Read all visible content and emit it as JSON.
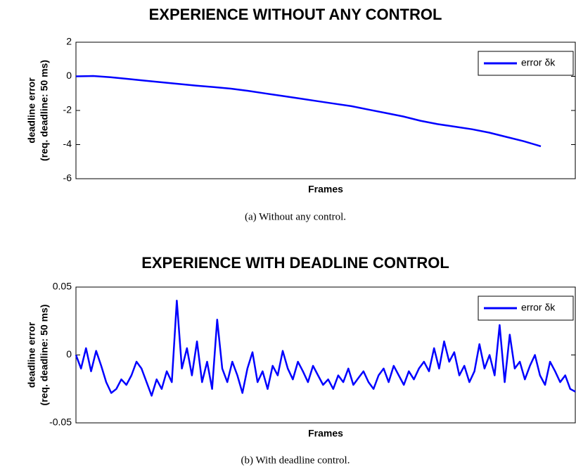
{
  "chart_data": [
    {
      "type": "line",
      "title": "EXPERIENCE WITHOUT ANY CONTROL",
      "xlabel": "Frames",
      "ylabel": [
        "deadline error",
        "(req. deadline: 50 ms)"
      ],
      "caption": "(a)  Without any control.",
      "ylim": [
        -6,
        2
      ],
      "yticks": [
        -6,
        -4,
        -2,
        0,
        2
      ],
      "grid": false,
      "legend": "upper right",
      "series": [
        {
          "name": "error δk",
          "color": "#0000ff",
          "values": [
            0,
            0.02,
            -0.05,
            -0.15,
            -0.25,
            -0.35,
            -0.45,
            -0.55,
            -0.63,
            -0.72,
            -0.85,
            -1.0,
            -1.15,
            -1.3,
            -1.45,
            -1.6,
            -1.75,
            -1.95,
            -2.15,
            -2.35,
            -2.6,
            -2.8,
            -2.95,
            -3.1,
            -3.3,
            -3.55,
            -3.8,
            -4.1,
            null,
            null
          ]
        }
      ]
    },
    {
      "type": "line",
      "title": "EXPERIENCE WITH DEADLINE CONTROL",
      "xlabel": "Frames",
      "ylabel": [
        "deadline error",
        "(req. deadline: 50 ms)"
      ],
      "caption": "(b)  With deadline control.",
      "ylim": [
        -0.05,
        0.05
      ],
      "yticks": [
        -0.05,
        0,
        0.05
      ],
      "grid": false,
      "legend": "upper right",
      "series": [
        {
          "name": "error δk",
          "color": "#0000ff",
          "values": [
            0.0,
            -0.01,
            0.005,
            -0.012,
            0.003,
            -0.008,
            -0.02,
            -0.028,
            -0.025,
            -0.018,
            -0.022,
            -0.015,
            -0.005,
            -0.01,
            -0.02,
            -0.03,
            -0.018,
            -0.025,
            -0.012,
            -0.02,
            0.04,
            -0.01,
            0.005,
            -0.015,
            0.01,
            -0.02,
            -0.005,
            -0.025,
            0.026,
            -0.01,
            -0.02,
            -0.005,
            -0.015,
            -0.028,
            -0.01,
            0.002,
            -0.02,
            -0.012,
            -0.025,
            -0.008,
            -0.015,
            0.003,
            -0.01,
            -0.018,
            -0.005,
            -0.012,
            -0.02,
            -0.008,
            -0.015,
            -0.022,
            -0.018,
            -0.025,
            -0.015,
            -0.02,
            -0.01,
            -0.022,
            -0.017,
            -0.012,
            -0.02,
            -0.025,
            -0.015,
            -0.01,
            -0.02,
            -0.008,
            -0.015,
            -0.022,
            -0.012,
            -0.018,
            -0.01,
            -0.005,
            -0.012,
            0.005,
            -0.01,
            0.01,
            -0.005,
            0.002,
            -0.015,
            -0.008,
            -0.02,
            -0.012,
            0.008,
            -0.01,
            0.0,
            -0.015,
            0.022,
            -0.02,
            0.015,
            -0.01,
            -0.005,
            -0.018,
            -0.008,
            0.0,
            -0.015,
            -0.022,
            -0.005,
            -0.012,
            -0.02,
            -0.015,
            -0.025,
            -0.027
          ]
        }
      ]
    }
  ]
}
